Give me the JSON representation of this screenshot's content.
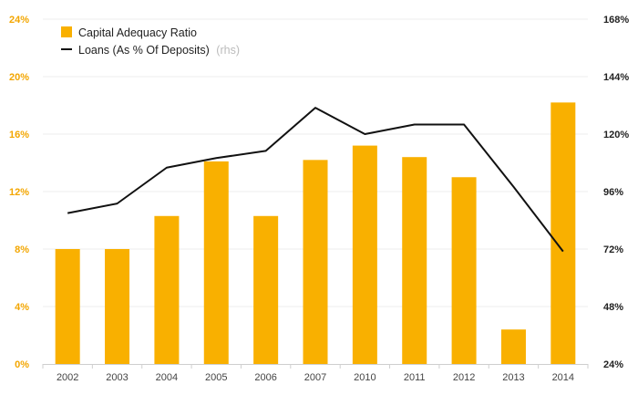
{
  "chart_data": {
    "type": "bar",
    "categories": [
      "2002",
      "2003",
      "2004",
      "2005",
      "2006",
      "2007",
      "2010",
      "2011",
      "2012",
      "2013",
      "2014"
    ],
    "series": [
      {
        "name": "Capital Adequacy Ratio",
        "type": "bar",
        "axis": "left",
        "color": "#f9b000",
        "values": [
          8.0,
          8.0,
          10.3,
          14.1,
          10.3,
          14.2,
          15.2,
          14.4,
          13.0,
          2.4,
          18.2
        ]
      },
      {
        "name": "Loans (As % Of Deposits)",
        "suffix": "(rhs)",
        "type": "line",
        "axis": "right",
        "color": "#111111",
        "values": [
          87,
          91,
          106,
          110,
          113,
          131,
          120,
          124,
          124,
          98,
          71
        ]
      }
    ],
    "y_left": {
      "ylim": [
        0,
        24
      ],
      "ticks": [
        0,
        4,
        8,
        12,
        16,
        20,
        24
      ],
      "tick_labels": [
        "0%",
        "4%",
        "8%",
        "12%",
        "16%",
        "20%",
        "24%"
      ],
      "color": "#f3a600"
    },
    "y_right": {
      "ylim": [
        24,
        168
      ],
      "ticks": [
        24,
        48,
        72,
        96,
        120,
        144,
        168
      ],
      "tick_labels": [
        "24%",
        "48%",
        "72%",
        "96%",
        "120%",
        "144%",
        "168%"
      ],
      "color": "#222222"
    },
    "grid": true,
    "legend": "top-left"
  }
}
